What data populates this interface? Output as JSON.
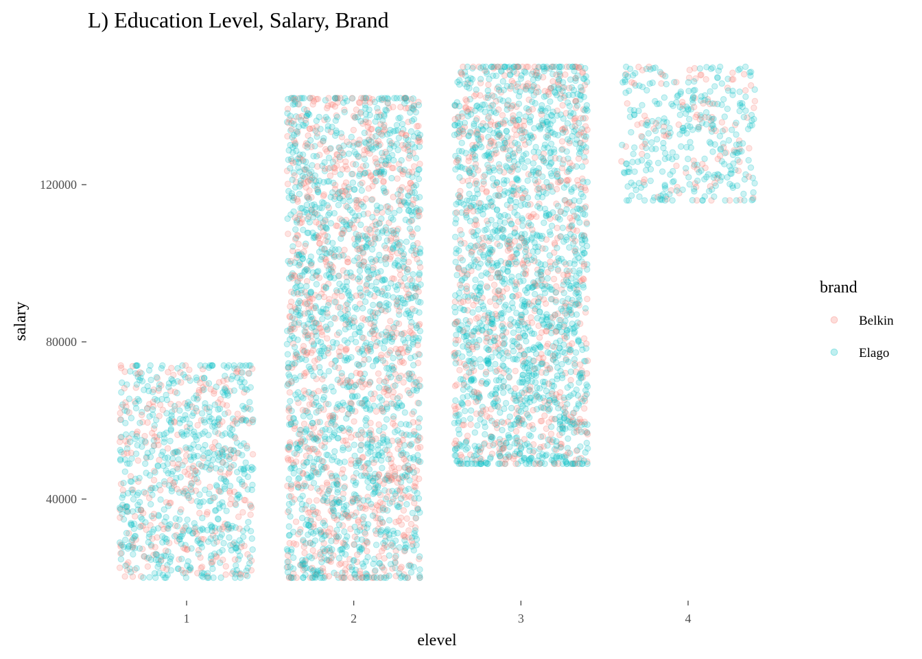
{
  "chart_data": {
    "type": "scatter",
    "title": "L) Education Level, Salary, Brand",
    "xlabel": "elevel",
    "ylabel": "salary",
    "x_ticks": [
      "1",
      "2",
      "3",
      "4"
    ],
    "y_ticks": [
      40000,
      80000,
      120000
    ],
    "y_tick_labels": [
      "40000",
      "80000",
      "120000"
    ],
    "xlim": [
      0.5,
      4.5
    ],
    "ylim": [
      20000,
      150000
    ],
    "jitter_width": 0.4,
    "legend": {
      "title": "brand",
      "position": "right"
    },
    "grid": false,
    "point_alpha": 0.2,
    "series": [
      {
        "name": "Belkin",
        "color": "#F8766D"
      },
      {
        "name": "Elago",
        "color": "#00BFC4"
      }
    ],
    "groups": [
      {
        "elevel": 1,
        "salary_range": [
          20000,
          74000
        ],
        "n_belkin": 300,
        "n_elago": 600
      },
      {
        "elevel": 2,
        "salary_range": [
          20000,
          142000
        ],
        "n_belkin": 1000,
        "n_elago": 1500
      },
      {
        "elevel": 3,
        "salary_range": [
          49000,
          150000
        ],
        "n_belkin": 700,
        "n_elago": 1500
      },
      {
        "elevel": 4,
        "salary_range": [
          116000,
          150000
        ],
        "n_belkin": 100,
        "n_elago": 300
      }
    ]
  }
}
